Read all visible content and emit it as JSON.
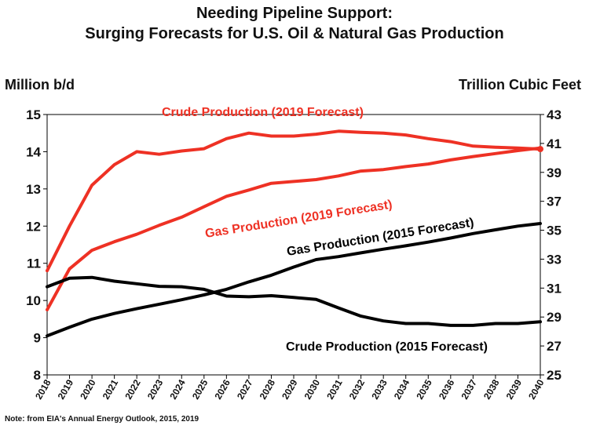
{
  "chart_data": {
    "type": "line",
    "title": "Needing Pipeline Support:",
    "subtitle": "Surging Forecasts for U.S. Oil & Natural Gas Production",
    "ylabel_left": "Million b/d",
    "ylabel_right": "Trillion Cubic Feet",
    "note": "Note: from EIA's Annual Energy Outlook, 2015, 2019",
    "x": [
      "2018",
      "2019",
      "2020",
      "2021",
      "2022",
      "2023",
      "2024",
      "2025",
      "2026",
      "2027",
      "2028",
      "2029",
      "2030",
      "2031",
      "2032",
      "2033",
      "2034",
      "2035",
      "2036",
      "2037",
      "2038",
      "2039",
      "2040"
    ],
    "ylim_left": [
      8,
      15
    ],
    "yticks_left": [
      "8",
      "9",
      "10",
      "11",
      "12",
      "13",
      "14",
      "15"
    ],
    "ylim_right": [
      25,
      43
    ],
    "yticks_right": [
      "25",
      "27",
      "29",
      "31",
      "33",
      "35",
      "37",
      "39",
      "41",
      "43"
    ],
    "series": [
      {
        "name": "Crude Production (2019 Forecast)",
        "axis": "left",
        "color": "#ee3124",
        "values": [
          10.8,
          12.0,
          13.1,
          13.65,
          14.0,
          13.93,
          14.02,
          14.08,
          14.35,
          14.5,
          14.42,
          14.42,
          14.47,
          14.55,
          14.52,
          14.5,
          14.45,
          14.35,
          14.27,
          14.15,
          14.12,
          14.1,
          14.07
        ]
      },
      {
        "name": "Gas Production (2019 Forecast)",
        "axis": "left",
        "color": "#ee3124",
        "values": [
          9.75,
          10.85,
          11.35,
          11.58,
          11.78,
          12.02,
          12.24,
          12.52,
          12.8,
          12.97,
          13.15,
          13.2,
          13.25,
          13.35,
          13.48,
          13.52,
          13.6,
          13.67,
          13.78,
          13.87,
          13.95,
          14.03,
          14.1
        ]
      },
      {
        "name": "Gas Production (2015 Forecast)",
        "axis": "left",
        "color": "#000000",
        "values": [
          9.05,
          9.28,
          9.5,
          9.65,
          9.78,
          9.9,
          10.02,
          10.15,
          10.3,
          10.5,
          10.68,
          10.9,
          11.1,
          11.18,
          11.28,
          11.38,
          11.47,
          11.57,
          11.68,
          11.8,
          11.9,
          12.0,
          12.07
        ]
      },
      {
        "name": "Crude Production (2015 Forecast)",
        "axis": "left",
        "color": "#000000",
        "values": [
          10.37,
          10.6,
          10.62,
          10.52,
          10.45,
          10.38,
          10.37,
          10.3,
          10.12,
          10.1,
          10.13,
          10.08,
          10.03,
          9.8,
          9.58,
          9.45,
          9.38,
          9.38,
          9.33,
          9.33,
          9.38,
          9.38,
          9.43
        ]
      }
    ],
    "annotations": [
      {
        "text": "Crude Production (2019 Forecast)",
        "color": "#ee3124"
      },
      {
        "text": "Gas Production (2019 Forecast)",
        "color": "#ee3124"
      },
      {
        "text": "Gas Production (2015 Forecast)",
        "color": "#000000"
      },
      {
        "text": "Crude Production (2015 Forecast)",
        "color": "#000000"
      }
    ]
  }
}
